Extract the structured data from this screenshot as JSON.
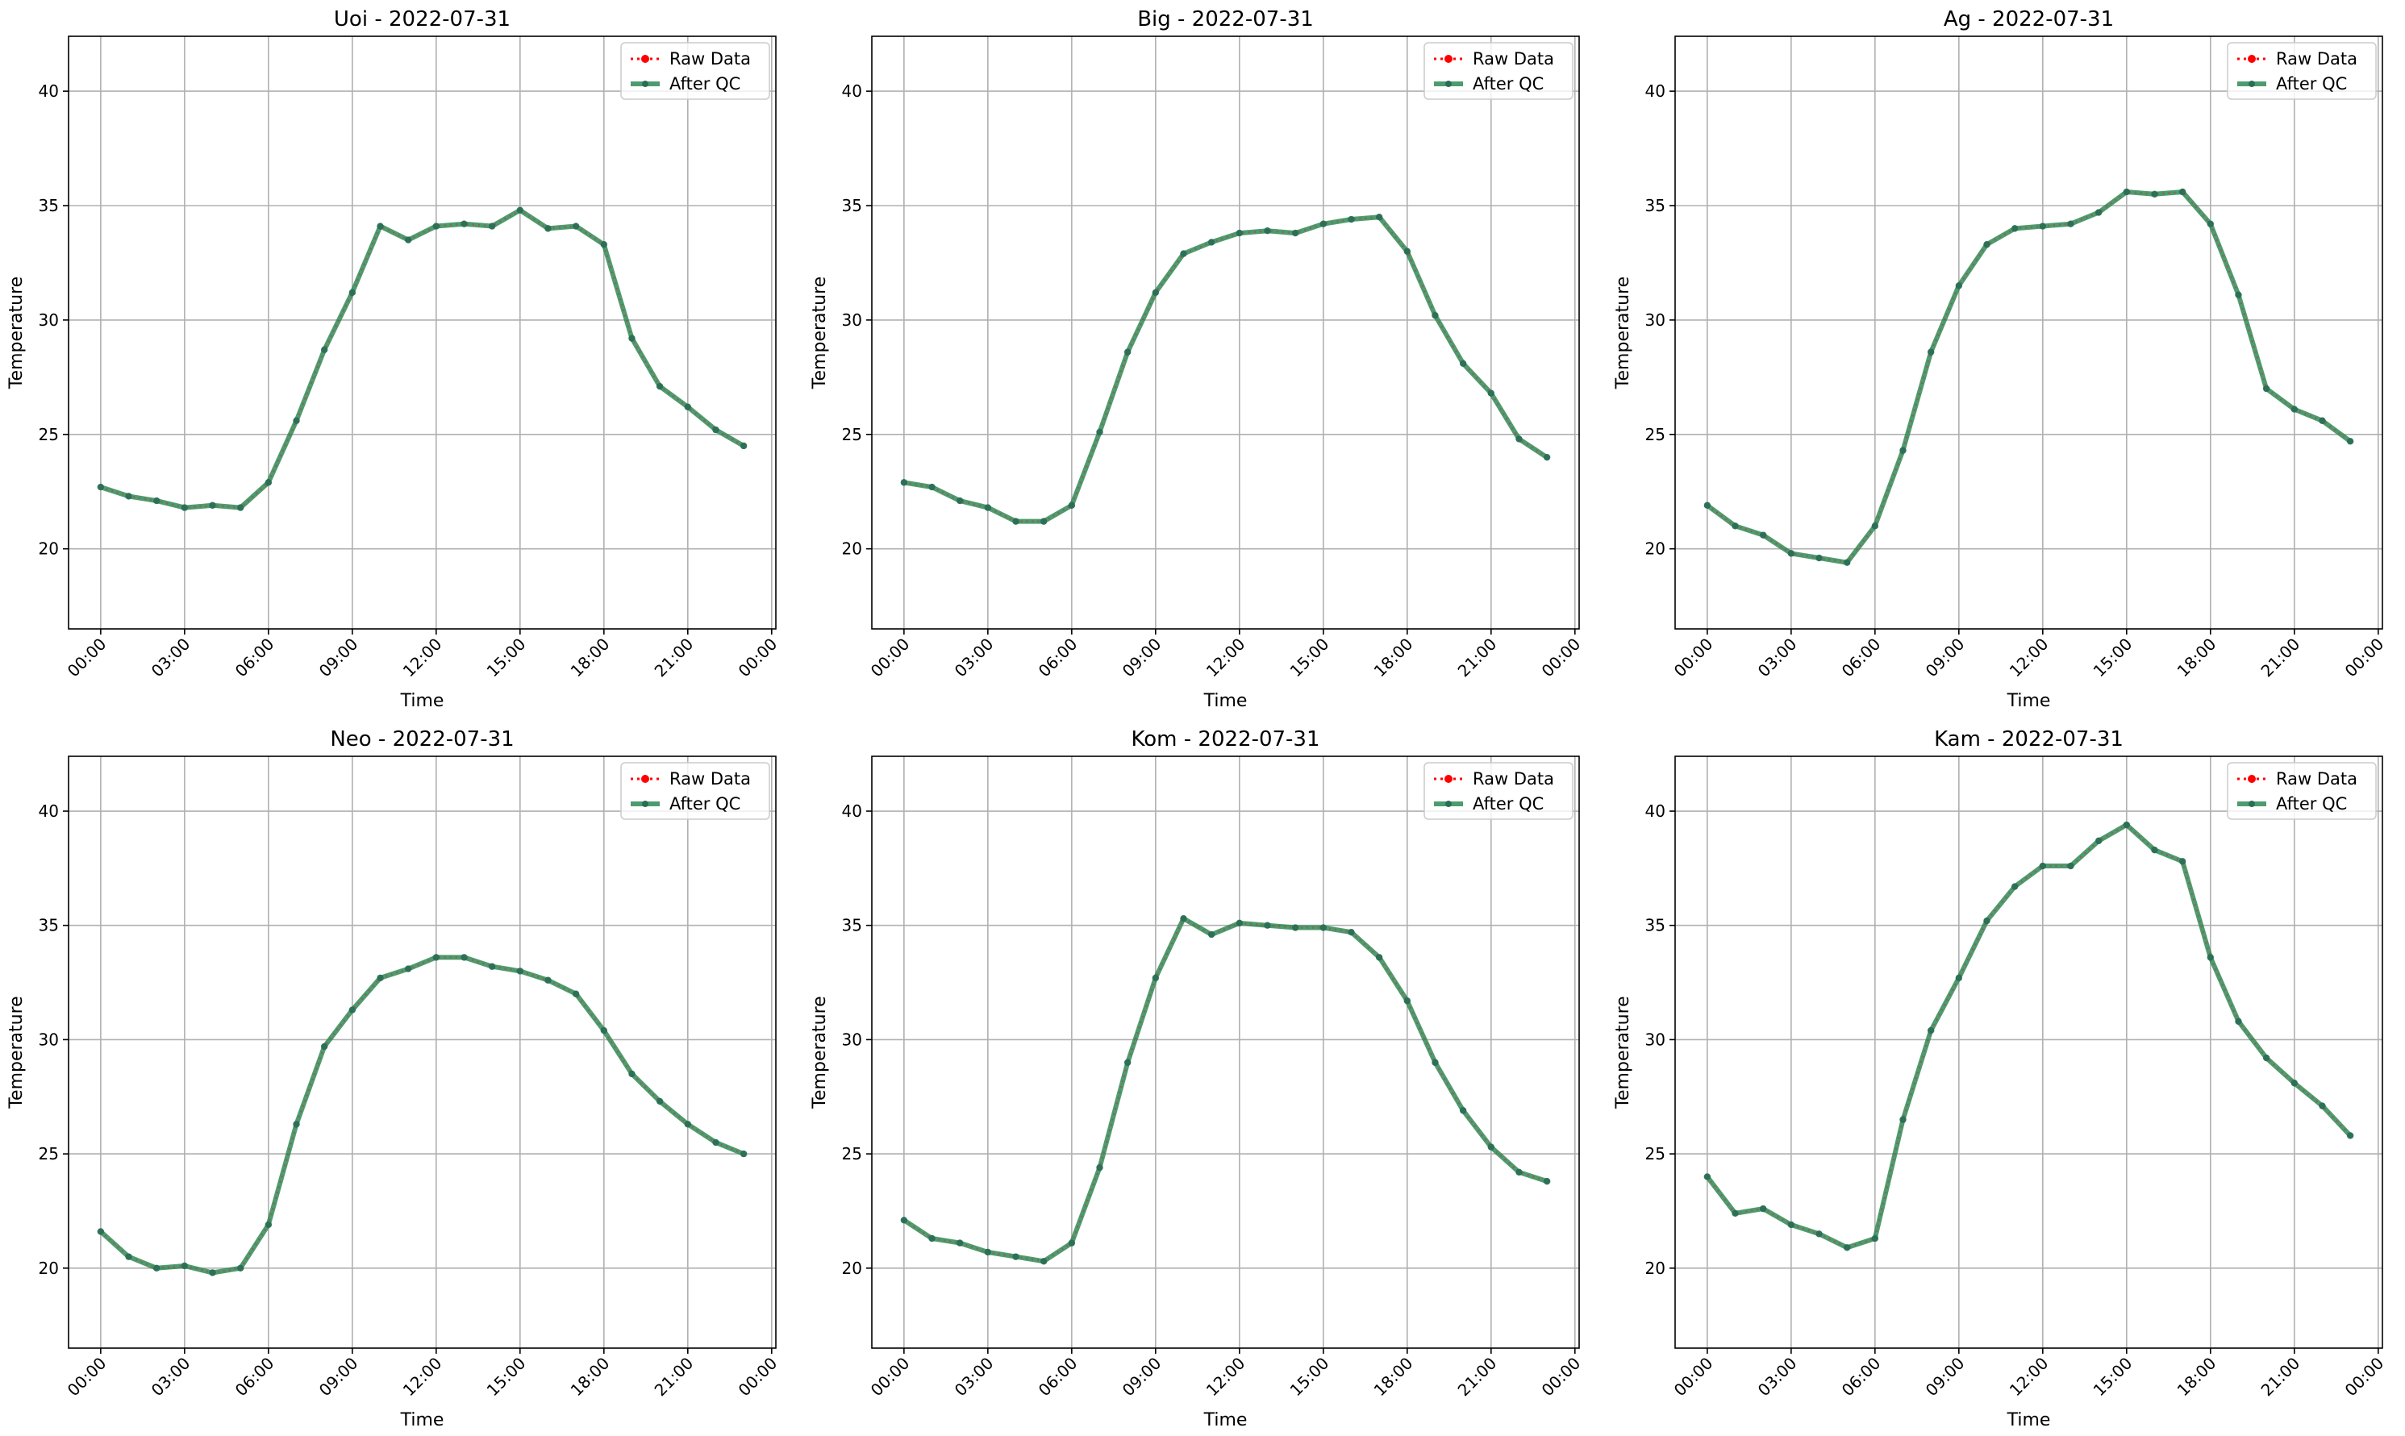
{
  "colors": {
    "raw": "#ff0000",
    "qc": "#2e8b57",
    "grid": "#b0b0b0",
    "axis": "#000000"
  },
  "legend": {
    "raw_label": "Raw Data",
    "qc_label": "After QC"
  },
  "chart_data": [
    {
      "type": "line",
      "title": "Uoi - 2022-07-31",
      "xlabel": "Time",
      "ylabel": "Temperature",
      "x_ticks": [
        "00:00",
        "03:00",
        "06:00",
        "09:00",
        "12:00",
        "15:00",
        "18:00",
        "21:00",
        "00:00"
      ],
      "y_ticks": [
        20,
        25,
        30,
        35,
        40
      ],
      "ylim": [
        16.5,
        42.4
      ],
      "grid": true,
      "legend_position": "top-right",
      "hours": [
        0,
        1,
        2,
        3,
        4,
        5,
        6,
        7,
        8,
        9,
        10,
        11,
        12,
        13,
        14,
        15,
        16,
        17,
        18,
        19,
        20,
        21,
        22,
        23
      ],
      "series": [
        {
          "name": "Raw Data",
          "values": [
            22.7,
            22.3,
            22.1,
            21.8,
            21.9,
            21.8,
            22.9,
            25.6,
            28.7,
            31.2,
            34.1,
            33.5,
            34.1,
            34.2,
            34.1,
            34.8,
            34.0,
            34.1,
            33.3,
            29.2,
            27.1,
            26.2,
            25.2,
            24.5
          ]
        },
        {
          "name": "After QC",
          "values": [
            22.7,
            22.3,
            22.1,
            21.8,
            21.9,
            21.8,
            22.9,
            25.6,
            28.7,
            31.2,
            34.1,
            33.5,
            34.1,
            34.2,
            34.1,
            34.8,
            34.0,
            34.1,
            33.3,
            29.2,
            27.1,
            26.2,
            25.2,
            24.5
          ]
        }
      ]
    },
    {
      "type": "line",
      "title": "Big - 2022-07-31",
      "xlabel": "Time",
      "ylabel": "Temperature",
      "x_ticks": [
        "00:00",
        "03:00",
        "06:00",
        "09:00",
        "12:00",
        "15:00",
        "18:00",
        "21:00",
        "00:00"
      ],
      "y_ticks": [
        20,
        25,
        30,
        35,
        40
      ],
      "ylim": [
        16.5,
        42.4
      ],
      "grid": true,
      "legend_position": "top-right",
      "hours": [
        0,
        1,
        2,
        3,
        4,
        5,
        6,
        7,
        8,
        9,
        10,
        11,
        12,
        13,
        14,
        15,
        16,
        17,
        18,
        19,
        20,
        21,
        22,
        23
      ],
      "series": [
        {
          "name": "Raw Data",
          "values": [
            22.9,
            22.7,
            22.1,
            21.8,
            21.2,
            21.2,
            21.9,
            25.1,
            28.6,
            31.2,
            32.9,
            33.4,
            33.8,
            33.9,
            33.8,
            34.2,
            34.4,
            34.5,
            33.0,
            30.2,
            28.1,
            26.8,
            24.8,
            24.0
          ]
        },
        {
          "name": "After QC",
          "values": [
            22.9,
            22.7,
            22.1,
            21.8,
            21.2,
            21.2,
            21.9,
            25.1,
            28.6,
            31.2,
            32.9,
            33.4,
            33.8,
            33.9,
            33.8,
            34.2,
            34.4,
            34.5,
            33.0,
            30.2,
            28.1,
            26.8,
            24.8,
            24.0
          ]
        }
      ]
    },
    {
      "type": "line",
      "title": "Ag - 2022-07-31",
      "xlabel": "Time",
      "ylabel": "Temperature",
      "x_ticks": [
        "00:00",
        "03:00",
        "06:00",
        "09:00",
        "12:00",
        "15:00",
        "18:00",
        "21:00",
        "00:00"
      ],
      "y_ticks": [
        20,
        25,
        30,
        35,
        40
      ],
      "ylim": [
        16.5,
        42.4
      ],
      "grid": true,
      "legend_position": "top-right",
      "hours": [
        0,
        1,
        2,
        3,
        4,
        5,
        6,
        7,
        8,
        9,
        10,
        11,
        12,
        13,
        14,
        15,
        16,
        17,
        18,
        19,
        20,
        21,
        22,
        23
      ],
      "series": [
        {
          "name": "Raw Data",
          "values": [
            21.9,
            21.0,
            20.6,
            19.8,
            19.6,
            19.4,
            21.0,
            24.3,
            28.6,
            31.5,
            33.3,
            34.0,
            34.1,
            34.2,
            34.7,
            35.6,
            35.5,
            35.6,
            34.2,
            31.1,
            27.0,
            26.1,
            25.6,
            24.7
          ]
        },
        {
          "name": "After QC",
          "values": [
            21.9,
            21.0,
            20.6,
            19.8,
            19.6,
            19.4,
            21.0,
            24.3,
            28.6,
            31.5,
            33.3,
            34.0,
            34.1,
            34.2,
            34.7,
            35.6,
            35.5,
            35.6,
            34.2,
            31.1,
            27.0,
            26.1,
            25.6,
            24.7
          ]
        }
      ]
    },
    {
      "type": "line",
      "title": "Neo - 2022-07-31",
      "xlabel": "Time",
      "ylabel": "Temperature",
      "x_ticks": [
        "00:00",
        "03:00",
        "06:00",
        "09:00",
        "12:00",
        "15:00",
        "18:00",
        "21:00",
        "00:00"
      ],
      "y_ticks": [
        20,
        25,
        30,
        35,
        40
      ],
      "ylim": [
        16.5,
        42.4
      ],
      "grid": true,
      "legend_position": "top-right",
      "hours": [
        0,
        1,
        2,
        3,
        4,
        5,
        6,
        7,
        8,
        9,
        10,
        11,
        12,
        13,
        14,
        15,
        16,
        17,
        18,
        19,
        20,
        21,
        22,
        23
      ],
      "series": [
        {
          "name": "Raw Data",
          "values": [
            21.6,
            20.5,
            20.0,
            20.1,
            19.8,
            20.0,
            21.9,
            26.3,
            29.7,
            31.3,
            32.7,
            33.1,
            33.6,
            33.6,
            33.2,
            33.0,
            32.6,
            32.0,
            30.4,
            28.5,
            27.3,
            26.3,
            25.5,
            25.0
          ]
        },
        {
          "name": "After QC",
          "values": [
            21.6,
            20.5,
            20.0,
            20.1,
            19.8,
            20.0,
            21.9,
            26.3,
            29.7,
            31.3,
            32.7,
            33.1,
            33.6,
            33.6,
            33.2,
            33.0,
            32.6,
            32.0,
            30.4,
            28.5,
            27.3,
            26.3,
            25.5,
            25.0
          ]
        }
      ]
    },
    {
      "type": "line",
      "title": "Kom - 2022-07-31",
      "xlabel": "Time",
      "ylabel": "Temperature",
      "x_ticks": [
        "00:00",
        "03:00",
        "06:00",
        "09:00",
        "12:00",
        "15:00",
        "18:00",
        "21:00",
        "00:00"
      ],
      "y_ticks": [
        20,
        25,
        30,
        35,
        40
      ],
      "ylim": [
        16.5,
        42.4
      ],
      "grid": true,
      "legend_position": "top-right",
      "hours": [
        0,
        1,
        2,
        3,
        4,
        5,
        6,
        7,
        8,
        9,
        10,
        11,
        12,
        13,
        14,
        15,
        16,
        17,
        18,
        19,
        20,
        21,
        22,
        23
      ],
      "series": [
        {
          "name": "Raw Data",
          "values": [
            22.1,
            21.3,
            21.1,
            20.7,
            20.5,
            20.3,
            21.1,
            24.4,
            29.0,
            32.7,
            35.3,
            34.6,
            35.1,
            35.0,
            34.9,
            34.9,
            34.7,
            33.6,
            31.7,
            29.0,
            26.9,
            25.3,
            24.2,
            23.8
          ]
        },
        {
          "name": "After QC",
          "values": [
            22.1,
            21.3,
            21.1,
            20.7,
            20.5,
            20.3,
            21.1,
            24.4,
            29.0,
            32.7,
            35.3,
            34.6,
            35.1,
            35.0,
            34.9,
            34.9,
            34.7,
            33.6,
            31.7,
            29.0,
            26.9,
            25.3,
            24.2,
            23.8
          ]
        }
      ]
    },
    {
      "type": "line",
      "title": "Kam - 2022-07-31",
      "xlabel": "Time",
      "ylabel": "Temperature",
      "x_ticks": [
        "00:00",
        "03:00",
        "06:00",
        "09:00",
        "12:00",
        "15:00",
        "18:00",
        "21:00",
        "00:00"
      ],
      "y_ticks": [
        20,
        25,
        30,
        35,
        40
      ],
      "ylim": [
        16.5,
        42.4
      ],
      "grid": true,
      "legend_position": "top-right",
      "hours": [
        0,
        1,
        2,
        3,
        4,
        5,
        6,
        7,
        8,
        9,
        10,
        11,
        12,
        13,
        14,
        15,
        16,
        17,
        18,
        19,
        20,
        21,
        22,
        23
      ],
      "series": [
        {
          "name": "Raw Data",
          "values": [
            24.0,
            22.4,
            22.6,
            21.9,
            21.5,
            20.9,
            21.3,
            26.5,
            30.4,
            32.7,
            35.2,
            36.7,
            37.6,
            37.6,
            38.7,
            39.4,
            38.3,
            37.8,
            33.6,
            30.8,
            29.2,
            28.1,
            27.1,
            25.8
          ]
        },
        {
          "name": "After QC",
          "values": [
            24.0,
            22.4,
            22.6,
            21.9,
            21.5,
            20.9,
            21.3,
            26.5,
            30.4,
            32.7,
            35.2,
            36.7,
            37.6,
            37.6,
            38.7,
            39.4,
            38.3,
            37.8,
            33.6,
            30.8,
            29.2,
            28.1,
            27.1,
            25.8
          ]
        }
      ]
    }
  ]
}
